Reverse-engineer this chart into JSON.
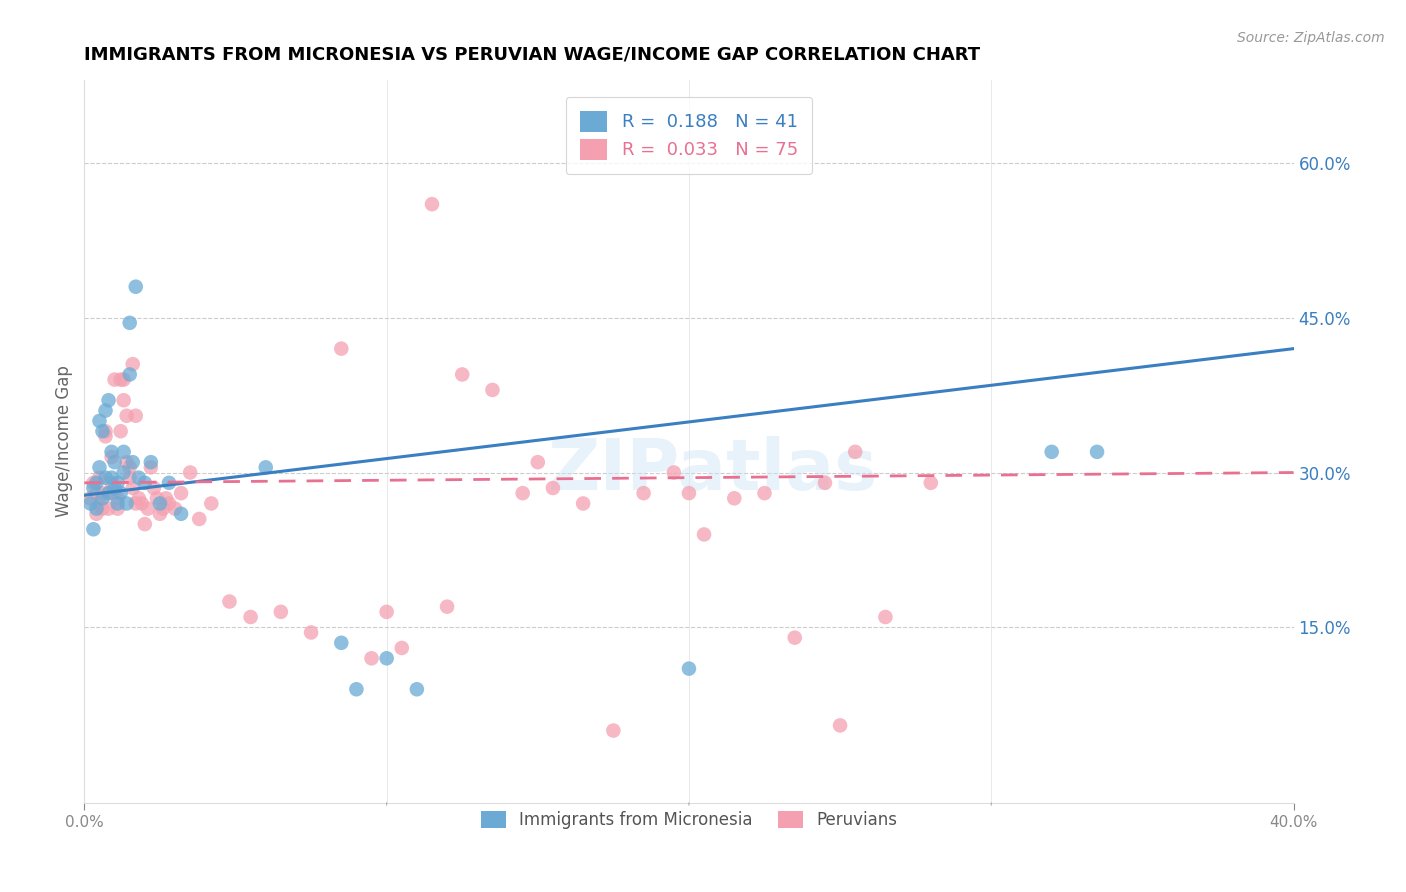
{
  "title": "IMMIGRANTS FROM MICRONESIA VS PERUVIAN WAGE/INCOME GAP CORRELATION CHART",
  "source": "Source: ZipAtlas.com",
  "ylabel": "Wage/Income Gap",
  "ytick_labels": [
    "60.0%",
    "45.0%",
    "30.0%",
    "15.0%"
  ],
  "ytick_values": [
    0.6,
    0.45,
    0.3,
    0.15
  ],
  "xlim": [
    0.0,
    0.4
  ],
  "ylim": [
    -0.02,
    0.68
  ],
  "legend_blue_r": "0.188",
  "legend_blue_n": "41",
  "legend_pink_r": "0.033",
  "legend_pink_n": "75",
  "legend_label_blue": "Immigrants from Micronesia",
  "legend_label_pink": "Peruvians",
  "blue_color": "#6aaad4",
  "pink_color": "#f4a0b0",
  "line_blue_color": "#3a7fc1",
  "line_pink_color": "#e87090",
  "watermark": "ZIPatlas",
  "blue_points_x": [
    0.002,
    0.003,
    0.003,
    0.004,
    0.004,
    0.005,
    0.005,
    0.006,
    0.006,
    0.007,
    0.007,
    0.008,
    0.008,
    0.009,
    0.009,
    0.01,
    0.01,
    0.011,
    0.011,
    0.012,
    0.013,
    0.013,
    0.014,
    0.015,
    0.015,
    0.016,
    0.017,
    0.018,
    0.02,
    0.022,
    0.025,
    0.028,
    0.032,
    0.06,
    0.085,
    0.09,
    0.1,
    0.11,
    0.2,
    0.32,
    0.335
  ],
  "blue_points_y": [
    0.27,
    0.285,
    0.245,
    0.265,
    0.29,
    0.305,
    0.35,
    0.275,
    0.34,
    0.295,
    0.36,
    0.37,
    0.28,
    0.295,
    0.32,
    0.285,
    0.31,
    0.27,
    0.29,
    0.28,
    0.3,
    0.32,
    0.27,
    0.395,
    0.445,
    0.31,
    0.48,
    0.295,
    0.29,
    0.31,
    0.27,
    0.29,
    0.26,
    0.305,
    0.135,
    0.09,
    0.12,
    0.09,
    0.11,
    0.32,
    0.32
  ],
  "pink_points_x": [
    0.002,
    0.003,
    0.004,
    0.004,
    0.005,
    0.005,
    0.006,
    0.006,
    0.007,
    0.007,
    0.008,
    0.008,
    0.009,
    0.009,
    0.01,
    0.01,
    0.011,
    0.011,
    0.012,
    0.012,
    0.013,
    0.013,
    0.014,
    0.014,
    0.015,
    0.015,
    0.016,
    0.016,
    0.017,
    0.017,
    0.018,
    0.019,
    0.02,
    0.021,
    0.022,
    0.023,
    0.024,
    0.025,
    0.026,
    0.027,
    0.028,
    0.03,
    0.032,
    0.035,
    0.038,
    0.042,
    0.048,
    0.055,
    0.065,
    0.075,
    0.085,
    0.095,
    0.105,
    0.115,
    0.125,
    0.135,
    0.145,
    0.155,
    0.165,
    0.175,
    0.185,
    0.195,
    0.205,
    0.215,
    0.225,
    0.235,
    0.245,
    0.255,
    0.265,
    0.28,
    0.1,
    0.12,
    0.15,
    0.2,
    0.25
  ],
  "pink_points_y": [
    0.275,
    0.29,
    0.28,
    0.26,
    0.27,
    0.295,
    0.28,
    0.265,
    0.34,
    0.335,
    0.28,
    0.265,
    0.315,
    0.29,
    0.39,
    0.28,
    0.275,
    0.265,
    0.39,
    0.34,
    0.39,
    0.37,
    0.31,
    0.355,
    0.305,
    0.295,
    0.285,
    0.405,
    0.355,
    0.27,
    0.275,
    0.27,
    0.25,
    0.265,
    0.305,
    0.285,
    0.275,
    0.26,
    0.265,
    0.275,
    0.27,
    0.265,
    0.28,
    0.3,
    0.255,
    0.27,
    0.175,
    0.16,
    0.165,
    0.145,
    0.42,
    0.12,
    0.13,
    0.56,
    0.395,
    0.38,
    0.28,
    0.285,
    0.27,
    0.05,
    0.28,
    0.3,
    0.24,
    0.275,
    0.28,
    0.14,
    0.29,
    0.32,
    0.16,
    0.29,
    0.165,
    0.17,
    0.31,
    0.28,
    0.055
  ]
}
